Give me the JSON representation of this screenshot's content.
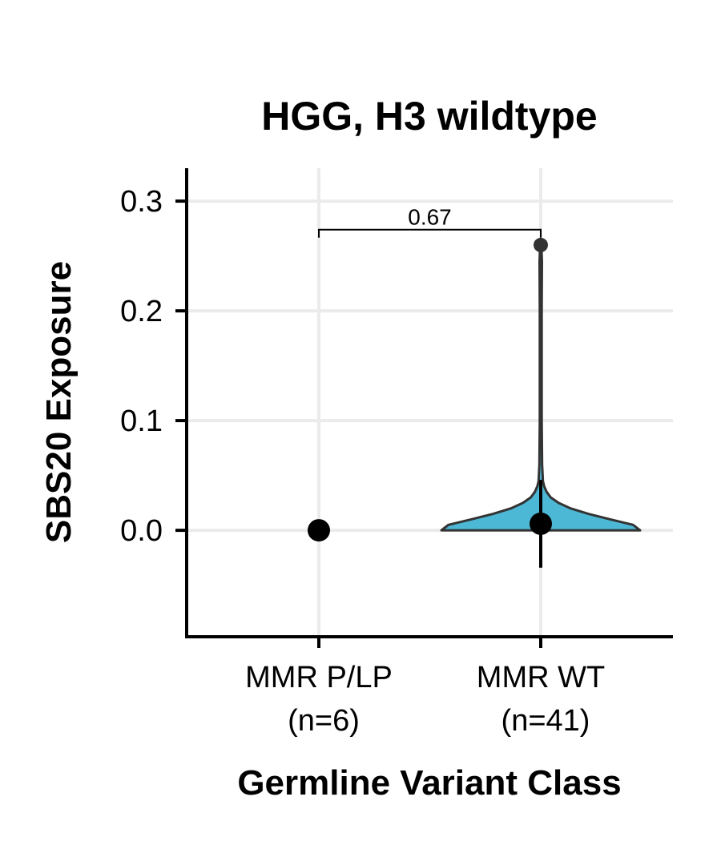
{
  "chart_data": {
    "type": "violin",
    "title": "HGG, H3 wildtype",
    "xlabel": "Germline Variant Class",
    "ylabel": "SBS20 Exposure",
    "ylim": [
      -0.097,
      0.33
    ],
    "yticks": [
      "0.0",
      "0.1",
      "0.2",
      "0.3"
    ],
    "ytick_values": [
      0,
      0.1,
      0.2,
      0.3
    ],
    "grid": true,
    "categories": [
      {
        "line1": "MMR P/LP",
        "line2": "(n=6)"
      },
      {
        "line1": "MMR WT",
        "line2": "(n=41)"
      }
    ],
    "groups": [
      {
        "name": "MMR P/LP",
        "n": 6,
        "violin": null,
        "summary_point": 0.0,
        "error_bar": null
      },
      {
        "name": "MMR WT",
        "n": 41,
        "fill": "#4DB8D6",
        "max": 0.26,
        "summary_point": 0.006,
        "error_bar": [
          -0.034,
          0.046
        ],
        "violin_profile": [
          {
            "y": 0.0,
            "w": 1.0
          },
          {
            "y": 0.005,
            "w": 0.93
          },
          {
            "y": 0.01,
            "w": 0.7
          },
          {
            "y": 0.015,
            "w": 0.48
          },
          {
            "y": 0.02,
            "w": 0.3
          },
          {
            "y": 0.025,
            "w": 0.18
          },
          {
            "y": 0.03,
            "w": 0.1
          },
          {
            "y": 0.035,
            "w": 0.06
          },
          {
            "y": 0.04,
            "w": 0.035
          },
          {
            "y": 0.045,
            "w": 0.022
          },
          {
            "y": 0.06,
            "w": 0.014
          },
          {
            "y": 0.1,
            "w": 0.01
          },
          {
            "y": 0.2,
            "w": 0.01
          },
          {
            "y": 0.245,
            "w": 0.012
          },
          {
            "y": 0.255,
            "w": 0.008
          },
          {
            "y": 0.26,
            "w": 0.0
          }
        ],
        "outliers": [
          0.26
        ]
      }
    ],
    "comparison": {
      "groups": [
        "MMR P/LP",
        "MMR WT"
      ],
      "y": 0.274,
      "label": "0.67"
    },
    "colors": {
      "violin_fill": "#4DB8D6",
      "violin_stroke": "#333333",
      "grid": "#EBEBEB",
      "axis": "#000000",
      "point": "#000000"
    }
  }
}
